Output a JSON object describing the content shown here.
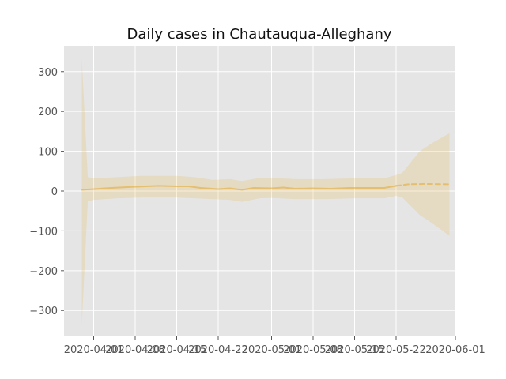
{
  "chart_data": {
    "type": "line",
    "title": "Daily cases in Chautauqua-Alleghany",
    "xlabel": "",
    "ylabel": "",
    "grid": true,
    "x_axis": {
      "type": "date",
      "range": [
        "2020-03-27",
        "2020-06-01"
      ],
      "ticks": [
        "2020-04-01",
        "2020-04-08",
        "2020-04-15",
        "2020-04-22",
        "2020-05-01",
        "2020-05-08",
        "2020-05-15",
        "2020-05-22",
        "2020-06-01"
      ]
    },
    "y_axis": {
      "range": [
        -365,
        365
      ],
      "ticks": [
        -300,
        -200,
        -100,
        0,
        100,
        200,
        300
      ],
      "tick_labels": [
        "−300",
        "−200",
        "−100",
        "0",
        "100",
        "200",
        "300"
      ]
    },
    "series": [
      {
        "style": "solid",
        "color": "#E5AE38",
        "points": [
          [
            "2020-03-30",
            3
          ],
          [
            "2020-04-01",
            5
          ],
          [
            "2020-04-04",
            8
          ],
          [
            "2020-04-08",
            11
          ],
          [
            "2020-04-12",
            13
          ],
          [
            "2020-04-15",
            12
          ],
          [
            "2020-04-17",
            12
          ],
          [
            "2020-04-19",
            8
          ],
          [
            "2020-04-22",
            5
          ],
          [
            "2020-04-24",
            7
          ],
          [
            "2020-04-26",
            3
          ],
          [
            "2020-04-28",
            8
          ],
          [
            "2020-05-01",
            7
          ],
          [
            "2020-05-03",
            9
          ],
          [
            "2020-05-05",
            6
          ],
          [
            "2020-05-08",
            7
          ],
          [
            "2020-05-11",
            6
          ],
          [
            "2020-05-14",
            8
          ],
          [
            "2020-05-17",
            8
          ],
          [
            "2020-05-20",
            8
          ],
          [
            "2020-05-22",
            13
          ]
        ]
      },
      {
        "style": "dashed",
        "color": "#E5AE38",
        "points": [
          [
            "2020-05-22",
            13
          ],
          [
            "2020-05-24",
            17
          ],
          [
            "2020-05-27",
            18
          ],
          [
            "2020-05-31",
            17
          ]
        ]
      }
    ],
    "confidence_band": {
      "color": "#E5AE38",
      "points": [
        [
          "2020-03-30",
          330,
          -335
        ],
        [
          "2020-03-31",
          35,
          -25
        ],
        [
          "2020-04-01",
          32,
          -22
        ],
        [
          "2020-04-05",
          35,
          -18
        ],
        [
          "2020-04-09",
          38,
          -16
        ],
        [
          "2020-04-15",
          38,
          -16
        ],
        [
          "2020-04-18",
          35,
          -18
        ],
        [
          "2020-04-21",
          28,
          -20
        ],
        [
          "2020-04-24",
          30,
          -22
        ],
        [
          "2020-04-26",
          25,
          -27
        ],
        [
          "2020-04-29",
          33,
          -18
        ],
        [
          "2020-05-01",
          33,
          -17
        ],
        [
          "2020-05-05",
          30,
          -20
        ],
        [
          "2020-05-10",
          30,
          -20
        ],
        [
          "2020-05-15",
          32,
          -18
        ],
        [
          "2020-05-20",
          32,
          -18
        ],
        [
          "2020-05-22",
          40,
          -12
        ],
        [
          "2020-05-23",
          45,
          -15
        ],
        [
          "2020-05-26",
          100,
          -60
        ],
        [
          "2020-05-28",
          120,
          -80
        ],
        [
          "2020-05-31",
          145,
          -112
        ]
      ]
    }
  },
  "colors": {
    "plot_background": "#E5E5E5",
    "grid": "#FFFFFF",
    "series": "#E5AE38"
  }
}
